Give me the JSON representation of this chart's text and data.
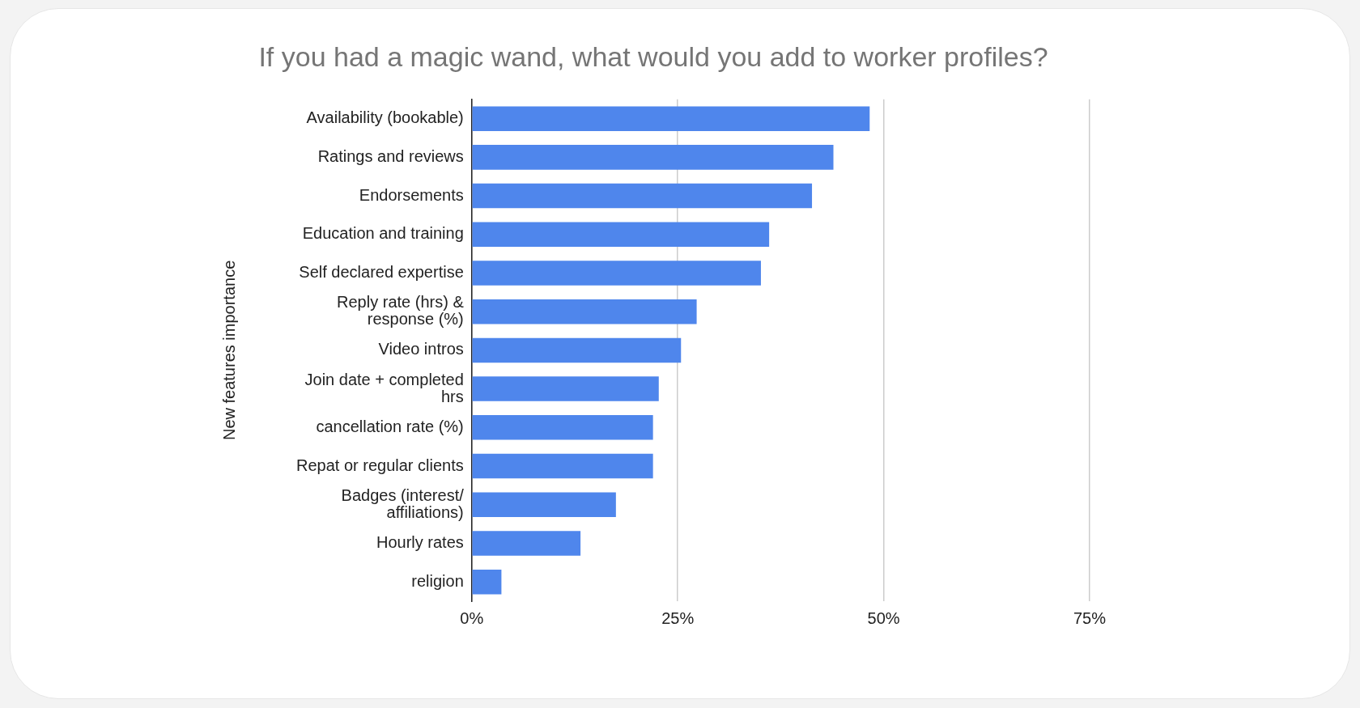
{
  "chart_data": {
    "type": "bar",
    "orientation": "horizontal",
    "title": "If you had a magic wand, what would you add to worker profiles?",
    "ylabel": "New features importance",
    "categories": [
      "Availability (bookable)",
      "Ratings and reviews",
      "Endorsements",
      "Education and training",
      "Self declared expertise",
      "Reply rate (hrs) & response (%)",
      "Video intros",
      "Join date + completed hrs",
      "cancellation rate (%)",
      "Repat or regular clients",
      "Badges (interest/ affiliations)",
      "Hourly rates",
      "religion"
    ],
    "values": [
      48.3,
      43.9,
      41.3,
      36.1,
      35.1,
      27.3,
      25.4,
      22.7,
      22.0,
      22.0,
      17.5,
      13.2,
      3.6
    ],
    "color": "#4f86ec",
    "xlim": [
      0,
      75
    ],
    "xticks": [
      {
        "value": 0,
        "label": "0%"
      },
      {
        "value": 25,
        "label": "25%"
      },
      {
        "value": 50,
        "label": "50%"
      },
      {
        "value": 75,
        "label": "75%"
      }
    ],
    "grid": "x",
    "legend": false
  }
}
